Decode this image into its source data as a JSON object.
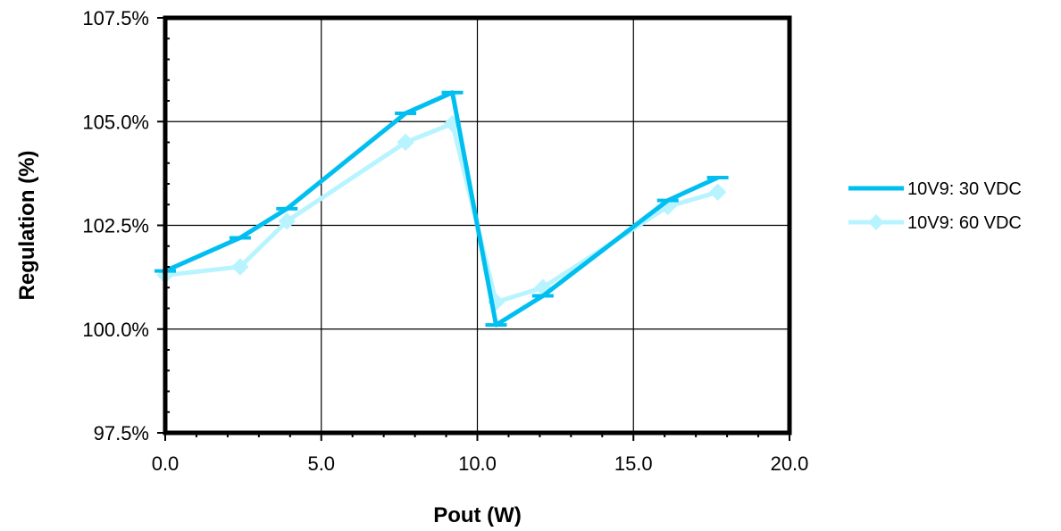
{
  "chart_data": {
    "type": "line",
    "title": "",
    "xlabel": "Pout (W)",
    "ylabel": "Regulation (%)",
    "xlim": [
      0,
      20
    ],
    "ylim": [
      97.5,
      107.5
    ],
    "x_ticks": [
      0,
      5,
      10,
      15,
      20
    ],
    "x_tick_labels": [
      "0.0",
      "5.0",
      "10.0",
      "15.0",
      "20.0"
    ],
    "y_ticks": [
      97.5,
      100,
      102.5,
      105,
      107.5
    ],
    "y_tick_labels": [
      "97.5%",
      "100.0%",
      "102.5%",
      "105.0%",
      "107.5%"
    ],
    "grid": true,
    "legend_position": "right",
    "series": [
      {
        "name": "10V9: 30 VDC",
        "color": "#00bff0",
        "marker": "dash",
        "points": [
          {
            "x": 0.0,
            "y": 101.4
          },
          {
            "x": 2.4,
            "y": 102.2
          },
          {
            "x": 3.9,
            "y": 102.9
          },
          {
            "x": 7.7,
            "y": 105.2
          },
          {
            "x": 9.2,
            "y": 105.7
          },
          {
            "x": 10.6,
            "y": 100.1
          },
          {
            "x": 12.1,
            "y": 100.8
          },
          {
            "x": 16.1,
            "y": 103.1
          },
          {
            "x": 17.7,
            "y": 103.65
          }
        ]
      },
      {
        "name": "10V9: 60 VDC",
        "color": "#b8f4ff",
        "marker": "diamond",
        "points": [
          {
            "x": 0.0,
            "y": 101.3
          },
          {
            "x": 2.4,
            "y": 101.5
          },
          {
            "x": 3.9,
            "y": 102.6
          },
          {
            "x": 7.7,
            "y": 104.5
          },
          {
            "x": 9.2,
            "y": 104.95
          },
          {
            "x": 10.6,
            "y": 100.65
          },
          {
            "x": 12.1,
            "y": 101.0
          },
          {
            "x": 16.1,
            "y": 102.95
          },
          {
            "x": 17.7,
            "y": 103.3
          }
        ]
      }
    ]
  }
}
